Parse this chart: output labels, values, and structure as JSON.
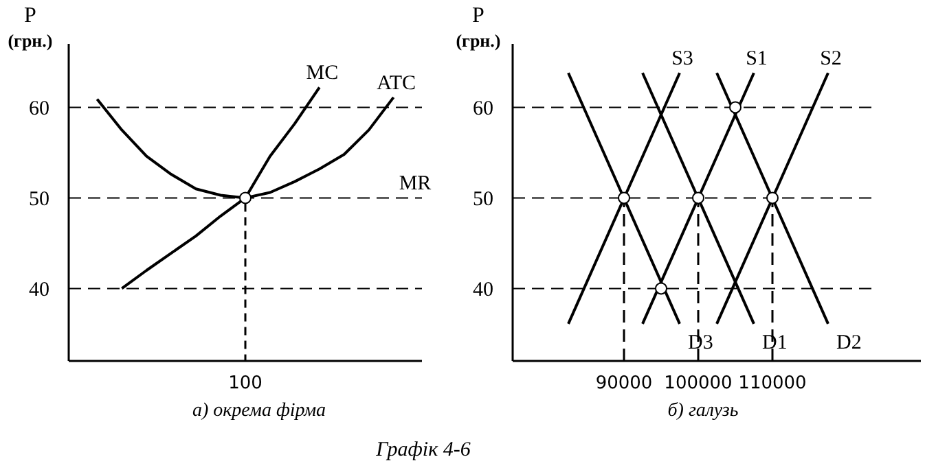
{
  "chart_data": [
    {
      "type": "line",
      "xlabel": "а) окрема фірма",
      "ylabel": "P$_{(грн.)}$",
      "ylim": [
        32,
        67
      ],
      "yticks": [
        40,
        50,
        60
      ],
      "annotations": [
        "Графік 4-6"
      ],
      "categories": [
        null,
        null,
        null,
        null,
        null,
        null,
        "100",
        null,
        null,
        null,
        null,
        null,
        null
      ],
      "ref_lines": [
        {
          "axis": "y",
          "value": 60,
          "line_style": "dashed",
          "color": "#000000"
        },
        {
          "axis": "y",
          "value": 50,
          "label": "MR",
          "line_style": "dashed",
          "color": "#000000"
        },
        {
          "axis": "y",
          "value": 40,
          "line_style": "dashed",
          "color": "#000000"
        }
      ],
      "series": [
        {
          "name": "MC",
          "color": "#000000",
          "values": [
            null,
            40,
            42,
            43.9,
            45.8,
            48,
            50,
            54.6,
            58.2,
            62.2,
            null,
            null,
            null
          ]
        },
        {
          "name": "ATC",
          "color": "#000000",
          "values": [
            60.9,
            57.5,
            54.6,
            52.6,
            51,
            50.3,
            50,
            50.6,
            51.8,
            53.2,
            54.8,
            57.5,
            61.1
          ]
        },
        {
          "type": "scatter",
          "marker": "circle",
          "color": "#ffffff",
          "values": [
            null,
            null,
            null,
            null,
            null,
            null,
            50,
            null,
            null,
            null,
            null,
            null,
            null
          ]
        }
      ]
    },
    {
      "type": "line",
      "xlabel": "б) галузь",
      "ylabel": "P$_{(грн.)}$",
      "xlim": [
        75000,
        130000
      ],
      "ylim": [
        32,
        67
      ],
      "xticks": [
        90000,
        100000,
        110000
      ],
      "yticks": [
        40,
        50,
        60
      ],
      "ref_lines": [
        {
          "axis": "y",
          "value": 60,
          "line_style": "dashed",
          "color": "#000000"
        },
        {
          "axis": "y",
          "value": 50,
          "line_style": "dashed",
          "color": "#000000"
        },
        {
          "axis": "y",
          "value": 40,
          "line_style": "dashed",
          "color": "#000000"
        }
      ],
      "series": [
        {
          "name": "D3",
          "color": "#000000",
          "x": [
            82500,
            97500
          ],
          "values": [
            63.8,
            36.1
          ]
        },
        {
          "name": "D1",
          "color": "#000000",
          "x": [
            92500,
            107500
          ],
          "values": [
            63.8,
            36.1
          ]
        },
        {
          "name": "D2",
          "color": "#000000",
          "x": [
            102500,
            117500
          ],
          "values": [
            63.8,
            36.1
          ]
        },
        {
          "name": "S3",
          "color": "#000000",
          "x": [
            82500,
            97500
          ],
          "values": [
            36.1,
            63.8
          ]
        },
        {
          "name": "S1",
          "color": "#000000",
          "x": [
            92500,
            107500
          ],
          "values": [
            36.1,
            63.8
          ]
        },
        {
          "name": "S2",
          "color": "#000000",
          "x": [
            102500,
            117500
          ],
          "values": [
            36.1,
            63.8
          ]
        },
        {
          "color": "#000000",
          "x": [
            90000,
            90000
          ],
          "values": [
            32,
            50
          ],
          "line_style": "dashed"
        },
        {
          "color": "#000000",
          "x": [
            100000,
            100000
          ],
          "values": [
            32,
            50
          ],
          "line_style": "dashed"
        },
        {
          "color": "#000000",
          "x": [
            110000,
            110000
          ],
          "values": [
            32,
            50
          ],
          "line_style": "dashed"
        },
        {
          "type": "scatter",
          "marker": "circle",
          "color": "#ffffff",
          "x": [
            105000,
            90000,
            100000,
            110000,
            95000
          ],
          "values": [
            60,
            50,
            50,
            50,
            40
          ]
        }
      ]
    }
  ]
}
